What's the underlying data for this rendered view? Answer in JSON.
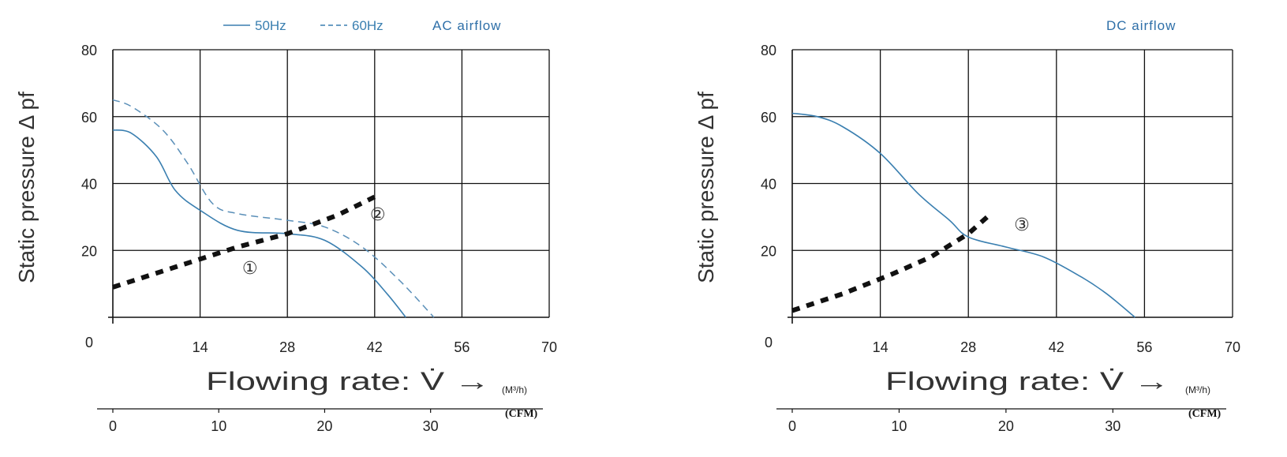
{
  "chart_data": [
    {
      "type": "line",
      "title": "AC airflow",
      "ylabel": "Static pressure Δ pf",
      "xlabel": "Flowing rate: V̇ →",
      "x_unit": "(M³/h)",
      "x2_unit": "(CFM)",
      "ylim": [
        0,
        80
      ],
      "xlim": [
        0,
        70
      ],
      "y_ticks": [
        "80",
        "60",
        "40",
        "20",
        "0"
      ],
      "x_ticks": [
        "0",
        "14",
        "28",
        "42",
        "56",
        "70"
      ],
      "x2_ticks": [
        "0",
        "10",
        "20",
        "30"
      ],
      "grid": true,
      "legend": {
        "position": "top",
        "items": [
          {
            "label": "50Hz",
            "style": "solid"
          },
          {
            "label": "60Hz",
            "style": "dashed"
          }
        ]
      },
      "series": [
        {
          "name": "50Hz",
          "style": "solid",
          "x": [
            0,
            3,
            7,
            10,
            14,
            20,
            28,
            34,
            40,
            44,
            47
          ],
          "y": [
            56,
            55,
            48,
            38,
            32,
            26,
            25,
            23,
            15,
            7,
            0
          ]
        },
        {
          "name": "60Hz",
          "style": "dashed",
          "x": [
            0,
            3,
            8,
            12,
            16,
            20,
            28,
            34,
            40,
            46,
            51.5
          ],
          "y": [
            65,
            63,
            56,
            46,
            34,
            31,
            29,
            27,
            21,
            11,
            0
          ]
        },
        {
          "name": "",
          "style": "dotted",
          "x": [
            0,
            10,
            20,
            28,
            36,
            42
          ],
          "y": [
            9,
            15,
            21,
            25,
            30.5,
            36
          ]
        }
      ],
      "annotations": [
        {
          "text": "①",
          "x": 22,
          "y": 13
        },
        {
          "text": "②",
          "x": 42.5,
          "y": 29
        }
      ]
    },
    {
      "type": "line",
      "title": "DC airflow",
      "ylabel": "Static pressure Δ pf",
      "xlabel": "Flowing rate: V̇ →",
      "x_unit": "(M³/h)",
      "x2_unit": "(CFM)",
      "ylim": [
        0,
        80
      ],
      "xlim": [
        0,
        70
      ],
      "y_ticks": [
        "80",
        "60",
        "40",
        "20",
        "0"
      ],
      "x_ticks": [
        "0",
        "14",
        "28",
        "42",
        "56",
        "70"
      ],
      "x2_ticks": [
        "0",
        "10",
        "20",
        "30"
      ],
      "grid": true,
      "series": [
        {
          "name": "",
          "style": "solid",
          "x": [
            0,
            4,
            8,
            14,
            20,
            25,
            28,
            34,
            40,
            46,
            50,
            54.5
          ],
          "y": [
            61,
            60,
            57,
            49,
            37,
            29,
            24,
            21,
            18,
            12,
            7,
            0
          ]
        },
        {
          "name": "",
          "style": "dotted",
          "x": [
            0,
            8,
            16,
            22,
            28,
            31
          ],
          "y": [
            2,
            7,
            13,
            18,
            25,
            30
          ]
        }
      ],
      "annotations": [
        {
          "text": "③",
          "x": 36.5,
          "y": 26
        }
      ]
    }
  ]
}
